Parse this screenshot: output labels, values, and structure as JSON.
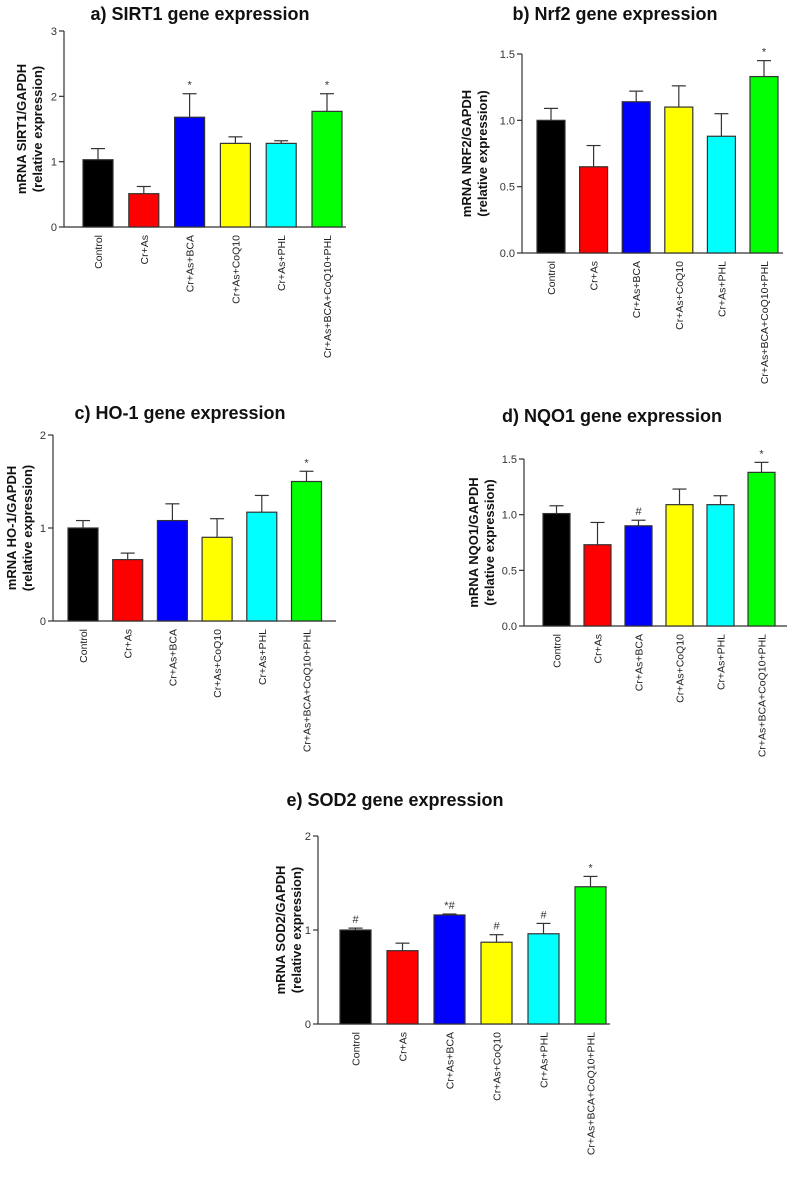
{
  "chart_data": [
    {
      "type": "bar",
      "title": "a) SIRT1 gene expression",
      "ylabel": [
        "mRNA SIRT1/GAPDH",
        "(relative expression)"
      ],
      "categories": [
        "Control",
        "Cr+As",
        "Cr+As+BCA",
        "Cr+As+CoQ10",
        "Cr+As+PHL",
        "Cr+As+BCA+CoQ10+PHL"
      ],
      "values": [
        1.03,
        0.51,
        1.68,
        1.28,
        1.28,
        1.77
      ],
      "errors": [
        0.17,
        0.11,
        0.36,
        0.1,
        0.04,
        0.27
      ],
      "annotations": [
        "",
        "",
        "*",
        "",
        "",
        "*"
      ],
      "ylim": [
        0,
        3
      ],
      "yticks": [
        0,
        1,
        2,
        3
      ],
      "ytick_labels": [
        "0",
        "1",
        "2",
        "3"
      ],
      "colors": [
        "#000000",
        "#ff0000",
        "#0000ff",
        "#ffff00",
        "#00ffff",
        "#00ff00"
      ]
    },
    {
      "type": "bar",
      "title": "b) Nrf2 gene expression",
      "ylabel": [
        "mRNA NRF2/GAPDH",
        "(relative expression)"
      ],
      "categories": [
        "Control",
        "Cr+As",
        "Cr+As+BCA",
        "Cr+As+CoQ10",
        "Cr+As+PHL",
        "Cr+As+BCA+CoQ10+PHL"
      ],
      "values": [
        1.0,
        0.65,
        1.14,
        1.1,
        0.88,
        1.33
      ],
      "errors": [
        0.09,
        0.16,
        0.08,
        0.16,
        0.17,
        0.12
      ],
      "annotations": [
        "",
        "",
        "",
        "",
        "",
        "*"
      ],
      "ylim": [
        0,
        1.5
      ],
      "yticks": [
        0,
        0.5,
        1.0,
        1.5
      ],
      "ytick_labels": [
        "0.0",
        "0.5",
        "1.0",
        "1.5"
      ],
      "colors": [
        "#000000",
        "#ff0000",
        "#0000ff",
        "#ffff00",
        "#00ffff",
        "#00ff00"
      ]
    },
    {
      "type": "bar",
      "title": "c) HO-1 gene expression",
      "ylabel": [
        "mRNA HO-1/GAPDH",
        "(relative expression)"
      ],
      "categories": [
        "Control",
        "Cr+As",
        "Cr+As+BCA",
        "Cr+As+CoQ10",
        "Cr+As+PHL",
        "Cr+As+BCA+CoQ10+PHL"
      ],
      "values": [
        1.0,
        0.66,
        1.08,
        0.9,
        1.17,
        1.5
      ],
      "errors": [
        0.08,
        0.07,
        0.18,
        0.2,
        0.18,
        0.11
      ],
      "annotations": [
        "",
        "",
        "",
        "",
        "",
        "*"
      ],
      "ylim": [
        0,
        2
      ],
      "yticks": [
        0,
        1,
        2
      ],
      "ytick_labels": [
        "0",
        "1",
        "2"
      ],
      "colors": [
        "#000000",
        "#ff0000",
        "#0000ff",
        "#ffff00",
        "#00ffff",
        "#00ff00"
      ]
    },
    {
      "type": "bar",
      "title": "d) NQO1 gene expression",
      "ylabel": [
        "mRNA NQO1/GAPDH",
        "(relative expression)"
      ],
      "categories": [
        "Control",
        "Cr+As",
        "Cr+As+BCA",
        "Cr+As+CoQ10",
        "Cr+As+PHL",
        "Cr+As+BCA+CoQ10+PHL"
      ],
      "values": [
        1.01,
        0.73,
        0.9,
        1.09,
        1.09,
        1.38
      ],
      "errors": [
        0.07,
        0.2,
        0.05,
        0.14,
        0.08,
        0.09
      ],
      "annotations": [
        "",
        "",
        "#",
        "",
        "",
        "*"
      ],
      "ylim": [
        0,
        1.5
      ],
      "yticks": [
        0,
        0.5,
        1.0,
        1.5
      ],
      "ytick_labels": [
        "0.0",
        "0.5",
        "1.0",
        "1.5"
      ],
      "colors": [
        "#000000",
        "#ff0000",
        "#0000ff",
        "#ffff00",
        "#00ffff",
        "#00ff00"
      ]
    },
    {
      "type": "bar",
      "title": "e) SOD2 gene expression",
      "ylabel": [
        "mRNA SOD2/GAPDH",
        "(relative expression)"
      ],
      "categories": [
        "Control",
        "Cr+As",
        "Cr+As+BCA",
        "Cr+As+CoQ10",
        "Cr+As+PHL",
        "Cr+As+BCA+CoQ10+PHL"
      ],
      "values": [
        1.0,
        0.78,
        1.16,
        0.87,
        0.96,
        1.46
      ],
      "errors": [
        0.02,
        0.08,
        0.01,
        0.08,
        0.11,
        0.11
      ],
      "annotations": [
        "#",
        "",
        "*#",
        "#",
        "#",
        "*"
      ],
      "ylim": [
        0,
        2
      ],
      "yticks": [
        0,
        1,
        2
      ],
      "ytick_labels": [
        "0",
        "1",
        "2"
      ],
      "colors": [
        "#000000",
        "#ff0000",
        "#0000ff",
        "#ffff00",
        "#00ffff",
        "#00ff00"
      ]
    }
  ]
}
